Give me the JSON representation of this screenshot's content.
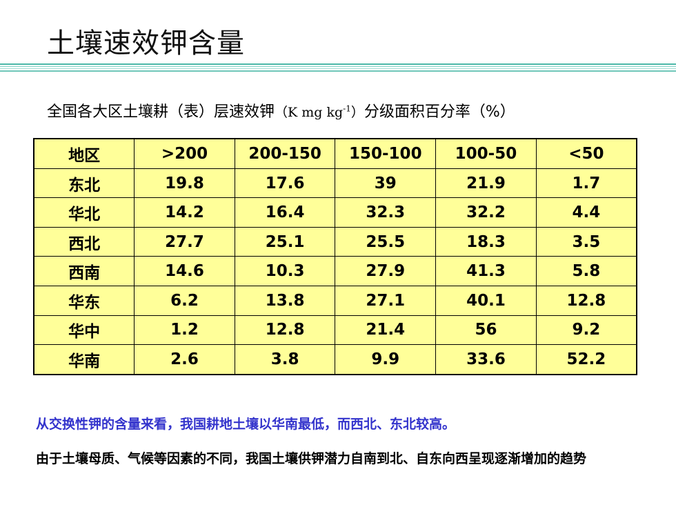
{
  "slide": {
    "title": "土壤速效钾含量"
  },
  "caption": {
    "text": "全国各大区土壤耕（表）层速效钾",
    "unit_open": "（K mg kg",
    "unit_exp": "-1",
    "unit_close": "）",
    "suffix": "分级面积百分率（%）"
  },
  "table": {
    "headers": [
      "地区",
      ">200",
      "200-150",
      "150-100",
      "100-50",
      "<50"
    ],
    "rows": [
      [
        "东北",
        "19.8",
        "17.6",
        "39",
        "21.9",
        "1.7"
      ],
      [
        "华北",
        "14.2",
        "16.4",
        "32.3",
        "32.2",
        "4.4"
      ],
      [
        "西北",
        "27.7",
        "25.1",
        "25.5",
        "18.3",
        "3.5"
      ],
      [
        "西南",
        "14.6",
        "10.3",
        "27.9",
        "41.3",
        "5.8"
      ],
      [
        "华东",
        "6.2",
        "13.8",
        "27.1",
        "40.1",
        "12.8"
      ],
      [
        "华中",
        "1.2",
        "12.8",
        "21.4",
        "56",
        "9.2"
      ],
      [
        "华南",
        "2.6",
        "3.8",
        "9.9",
        "33.6",
        "52.2"
      ]
    ]
  },
  "notes": {
    "summary": "从交换性钾的含量来看，我国耕地土壤以华南最低，而西北、东北较高。",
    "conclusion": "由于土壤母质、气候等因素的不同，我国土壤供钾潜力自南到北、自东向西呈现逐渐增加的趋势"
  },
  "colors": {
    "table_fill": "#ffff99",
    "summary_text": "#3333cc",
    "rule": "#4cb8a8"
  }
}
